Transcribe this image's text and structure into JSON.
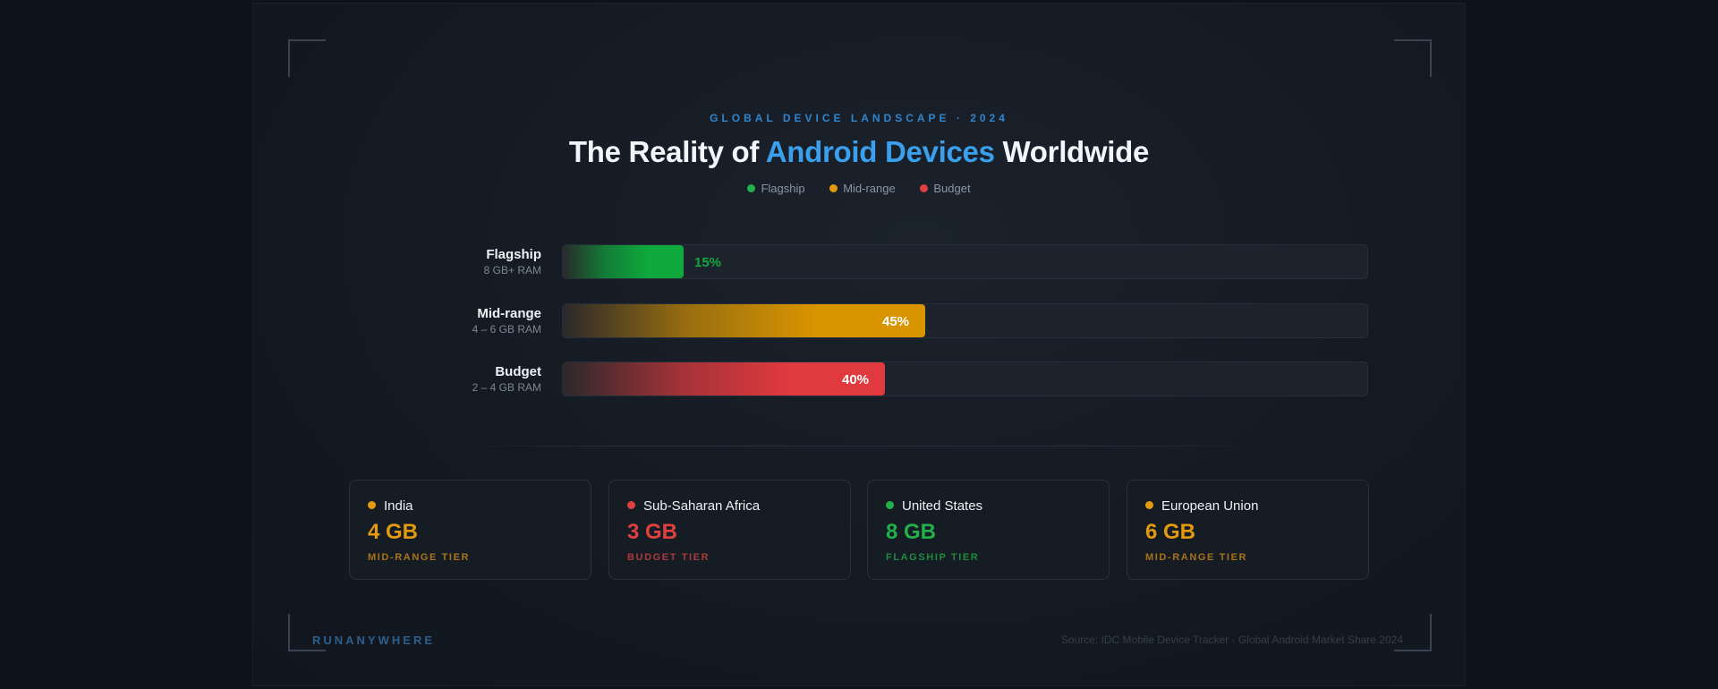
{
  "header": {
    "eyebrow": "GLOBAL DEVICE LANDSCAPE · 2024",
    "title_pre": "The Reality of ",
    "title_accent": "Android Devices",
    "title_post": " Worldwide"
  },
  "legend": [
    {
      "label": "Flagship",
      "color": "#22b04a"
    },
    {
      "label": "Mid-range",
      "color": "#e29a0e"
    },
    {
      "label": "Budget",
      "color": "#e0403f"
    }
  ],
  "chart_data": {
    "type": "bar",
    "orientation": "horizontal",
    "categories": [
      "Flagship",
      "Mid-range",
      "Budget"
    ],
    "subtitles": [
      "8 GB+ RAM",
      "4 – 6 GB RAM",
      "2 – 4 GB RAM"
    ],
    "values": [
      15,
      45,
      40
    ],
    "value_labels": [
      "15%",
      "45%",
      "40%"
    ],
    "colors": [
      "#0ea83c",
      "#d99500",
      "#e03a3e"
    ],
    "xlim": [
      0,
      100
    ],
    "legend": "top-center",
    "grid": false
  },
  "regions": [
    {
      "name": "India",
      "value": "4 GB",
      "tier": "MID-RANGE TIER",
      "color": "#e29a0e"
    },
    {
      "name": "Sub-Saharan Africa",
      "value": "3 GB",
      "tier": "BUDGET TIER",
      "color": "#e0403f"
    },
    {
      "name": "United States",
      "value": "8 GB",
      "tier": "FLAGSHIP TIER",
      "color": "#22b04a"
    },
    {
      "name": "European Union",
      "value": "6 GB",
      "tier": "MID-RANGE TIER",
      "color": "#e29a0e"
    }
  ],
  "footer": {
    "brand": "RUNANYWHERE",
    "source": "Source: IDC Mobile Device Tracker · Global Android Market Share 2024"
  }
}
